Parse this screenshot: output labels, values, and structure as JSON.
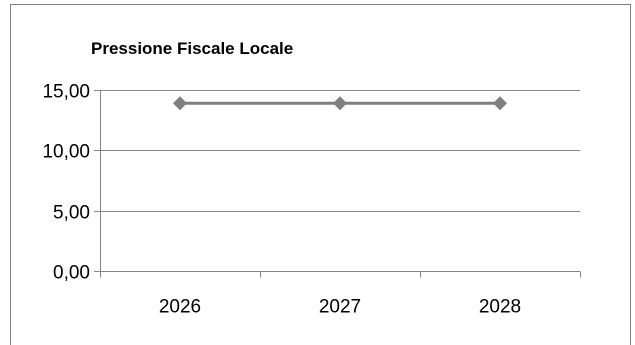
{
  "chart_data": {
    "type": "line",
    "title": "Pressione Fiscale Locale",
    "xlabel": "",
    "ylabel": "",
    "categories": [
      "2026",
      "2027",
      "2028"
    ],
    "series": [
      {
        "values": [
          13.9,
          13.9,
          13.9
        ],
        "color": "#7f7f7f"
      }
    ],
    "ylim": [
      0,
      15
    ],
    "yticks": [
      0,
      5,
      10,
      15
    ],
    "ytick_labels": [
      "0,00",
      "5,00",
      "10,00",
      "15,00"
    ],
    "grid": true,
    "legend": "none"
  }
}
